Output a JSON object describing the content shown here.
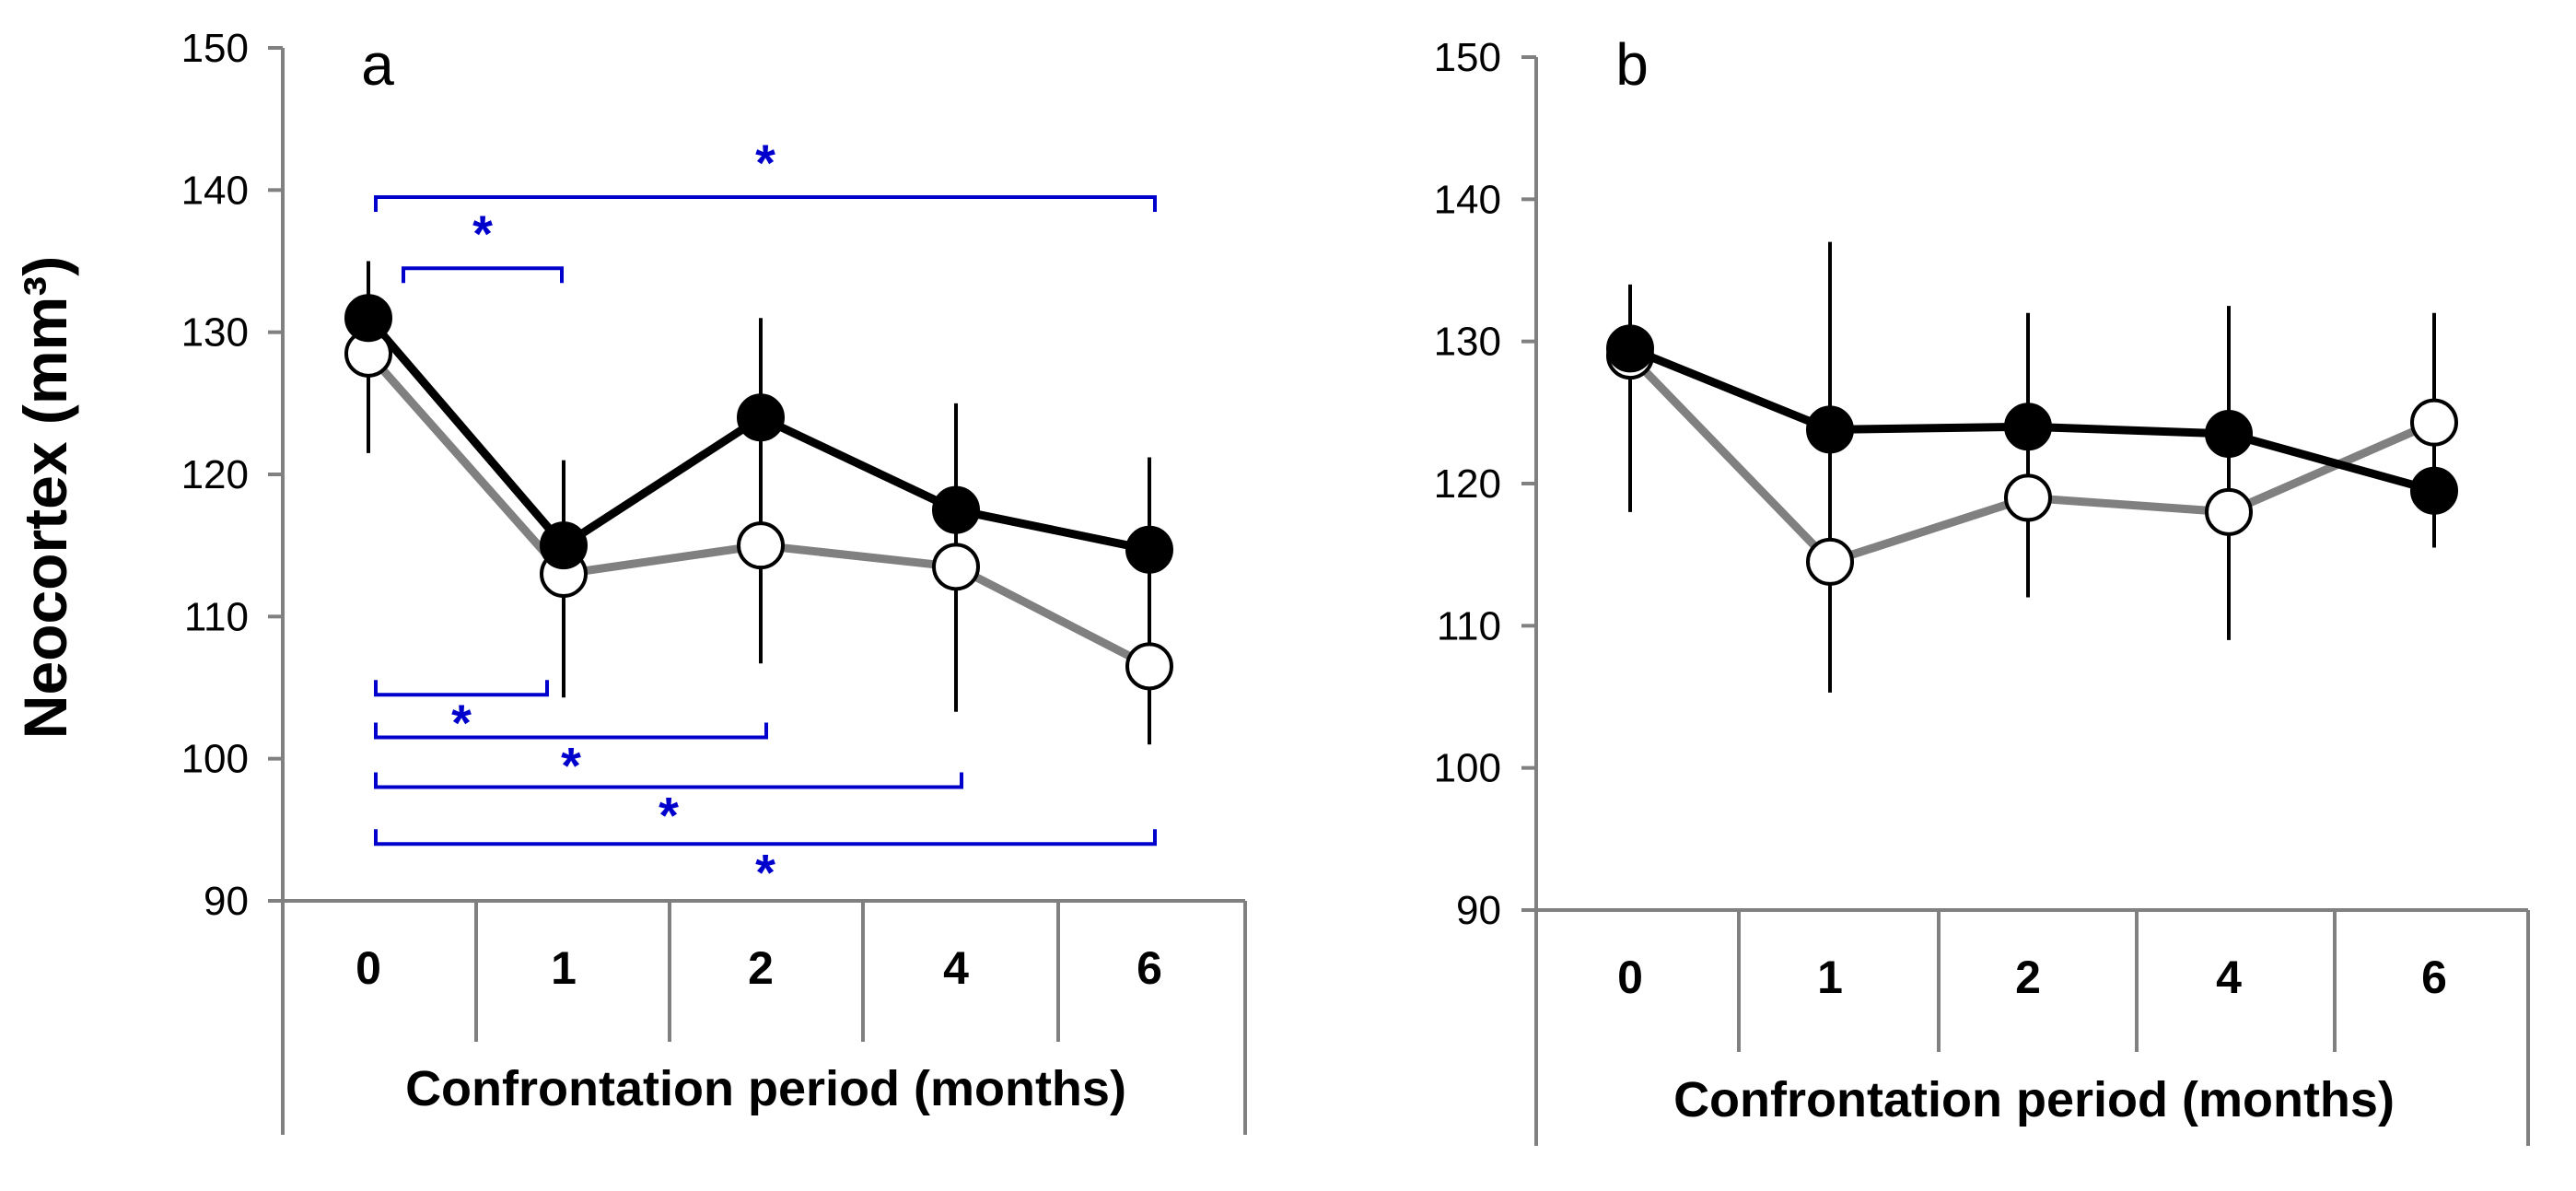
{
  "colors": {
    "black_series": "#000000",
    "white_series_line": "#808080",
    "white_series_fill": "#ffffff",
    "axis": "#808080",
    "significance": "#0000cc"
  },
  "shared": {
    "ylabel": "Neocortex (mm³)",
    "xlabel": "Confrontation period (months)"
  },
  "chart_data": [
    {
      "type": "line",
      "panel": "a",
      "categories": [
        "0",
        "1",
        "2",
        "4",
        "6"
      ],
      "xlabel": "Confrontation period (months)",
      "ylabel": "Neocortex (mm³)",
      "ylim": [
        90,
        150
      ],
      "yticks": [
        "90",
        "100",
        "110",
        "120",
        "130",
        "140",
        "150"
      ],
      "series": [
        {
          "name": "filled",
          "marker": "filled-circle",
          "line_color": "#000000",
          "values": [
            131,
            115,
            124,
            117.5,
            114.7
          ],
          "err_upper": [
            135,
            121,
            131,
            125,
            121.2
          ],
          "err_lower": [
            127,
            110,
            117,
            110,
            108
          ]
        },
        {
          "name": "open",
          "marker": "open-circle",
          "line_color": "#808080",
          "values": [
            128.5,
            113,
            115,
            113.5,
            106.5
          ],
          "err_upper": [
            132,
            116,
            118.5,
            117,
            110
          ],
          "err_lower": [
            121.5,
            104.3,
            106.7,
            103.3,
            101
          ]
        }
      ],
      "significance": [
        {
          "from": 0,
          "to": 4,
          "y": 139.5,
          "side": "above",
          "label": "*"
        },
        {
          "from": 0,
          "to": 1,
          "y": 134.5,
          "side": "above",
          "label": "*"
        },
        {
          "from": 0,
          "to": 1,
          "y": 104.5,
          "side": "below",
          "label": "*"
        },
        {
          "from": 0,
          "to": 2,
          "y": 101.5,
          "side": "below",
          "label": "*"
        },
        {
          "from": 0,
          "to": 3,
          "y": 98,
          "side": "below",
          "label": "*"
        },
        {
          "from": 0,
          "to": 4,
          "y": 94,
          "side": "below",
          "label": "*"
        }
      ]
    },
    {
      "type": "line",
      "panel": "b",
      "categories": [
        "0",
        "1",
        "2",
        "4",
        "6"
      ],
      "xlabel": "Confrontation period (months)",
      "ylabel": "",
      "ylim": [
        90,
        150
      ],
      "yticks": [
        "90",
        "100",
        "110",
        "120",
        "130",
        "140",
        "150"
      ],
      "series": [
        {
          "name": "filled",
          "marker": "filled-circle",
          "line_color": "#000000",
          "values": [
            129.5,
            123.8,
            124,
            123.5,
            119.5
          ],
          "err_upper": [
            134,
            137,
            132,
            132.5,
            132
          ],
          "err_lower": [
            118,
            112,
            112,
            109,
            115.5
          ]
        },
        {
          "name": "open",
          "marker": "open-circle",
          "line_color": "#808080",
          "values": [
            129,
            114.5,
            119,
            118,
            124.3
          ],
          "err_upper": [
            132,
            118,
            123,
            122,
            128
          ],
          "err_lower": [
            122,
            105.3,
            112,
            109,
            120
          ]
        }
      ],
      "significance": []
    }
  ]
}
